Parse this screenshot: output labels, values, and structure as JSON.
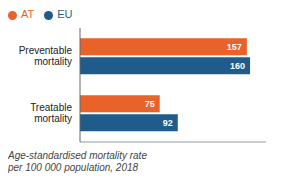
{
  "chart_data": {
    "type": "bar",
    "orientation": "horizontal",
    "subtitle": "Age-standardised mortality rate\nper 100 000 population, 2018",
    "categories": [
      "Preventable\nmortality",
      "Treatable\nmortality"
    ],
    "series": [
      {
        "name": "AT",
        "color": "#E8622A",
        "values": [
          157,
          75
        ]
      },
      {
        "name": "EU",
        "color": "#1F5C8B",
        "values": [
          160,
          92
        ]
      }
    ],
    "xlim": [
      0,
      175
    ],
    "data_labels": true,
    "tick_labels": "y",
    "legend": "upper left",
    "grid": false
  }
}
